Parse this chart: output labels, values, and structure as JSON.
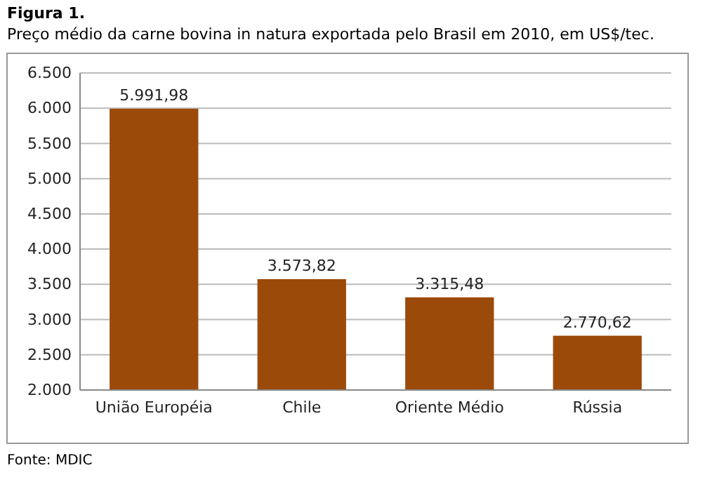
{
  "chart_data": {
    "type": "bar",
    "title": "Figura 1.",
    "subtitle": "Preço médio da carne bovina in natura exportada pelo Brasil em 2010, em US$/tec.",
    "categories": [
      "União Européia",
      "Chile",
      "Oriente Médio",
      "Rússia"
    ],
    "values": [
      5991.98,
      3573.82,
      3315.48,
      2770.62
    ],
    "value_labels": [
      "5.991,98",
      "3.573,82",
      "3.315,48",
      "2.770,62"
    ],
    "color": "#9c4a0a",
    "ylim": [
      2000,
      6500
    ],
    "yticks": [
      {
        "value": 2000,
        "label": "2.000"
      },
      {
        "value": 2500,
        "label": "2.500"
      },
      {
        "value": 3000,
        "label": "3.000"
      },
      {
        "value": 3500,
        "label": "3.500"
      },
      {
        "value": 4000,
        "label": "4.000"
      },
      {
        "value": 4500,
        "label": "4.500"
      },
      {
        "value": 5000,
        "label": "5.000"
      },
      {
        "value": 5500,
        "label": "5.500"
      },
      {
        "value": 6000,
        "label": "6.000"
      },
      {
        "value": 6500,
        "label": "6.500"
      }
    ],
    "grid": "y",
    "annotations": [
      "Fonte: MDIC"
    ]
  }
}
